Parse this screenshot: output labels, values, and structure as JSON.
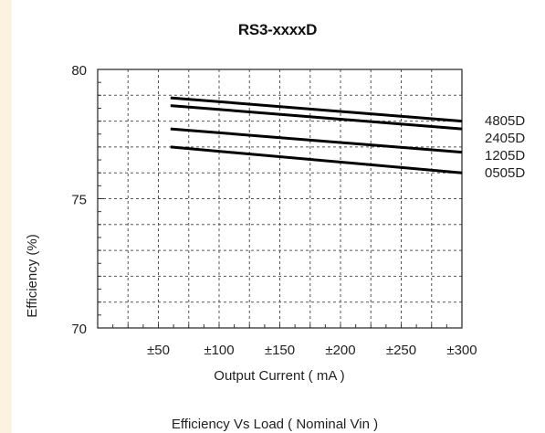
{
  "chart_data": {
    "type": "line",
    "title": "RS3-xxxxD",
    "xlabel": "Output Current ( mA )",
    "ylabel": "Efficiency (%)",
    "caption": "Efficiency  Vs Load ( Nominal Vin )",
    "x_tick_labels": [
      "±50",
      "±100",
      "±150",
      "±200",
      "±250",
      "±300"
    ],
    "x_ticks": [
      50,
      100,
      150,
      200,
      250,
      300
    ],
    "xlim": [
      0,
      300
    ],
    "y_tick_labels": [
      "70",
      "75",
      "80"
    ],
    "y_ticks": [
      70,
      75,
      80
    ],
    "ylim": [
      70,
      80
    ],
    "grid": true,
    "legend_placement": "right",
    "line_color": "#000000",
    "series": [
      {
        "name": "4805D",
        "x": [
          60,
          300
        ],
        "y": [
          78.9,
          78.0
        ]
      },
      {
        "name": "2405D",
        "x": [
          60,
          300
        ],
        "y": [
          78.6,
          77.7
        ]
      },
      {
        "name": "1205D",
        "x": [
          60,
          300
        ],
        "y": [
          77.7,
          76.8
        ]
      },
      {
        "name": "0505D",
        "x": [
          60,
          300
        ],
        "y": [
          77.0,
          76.0
        ]
      }
    ]
  }
}
